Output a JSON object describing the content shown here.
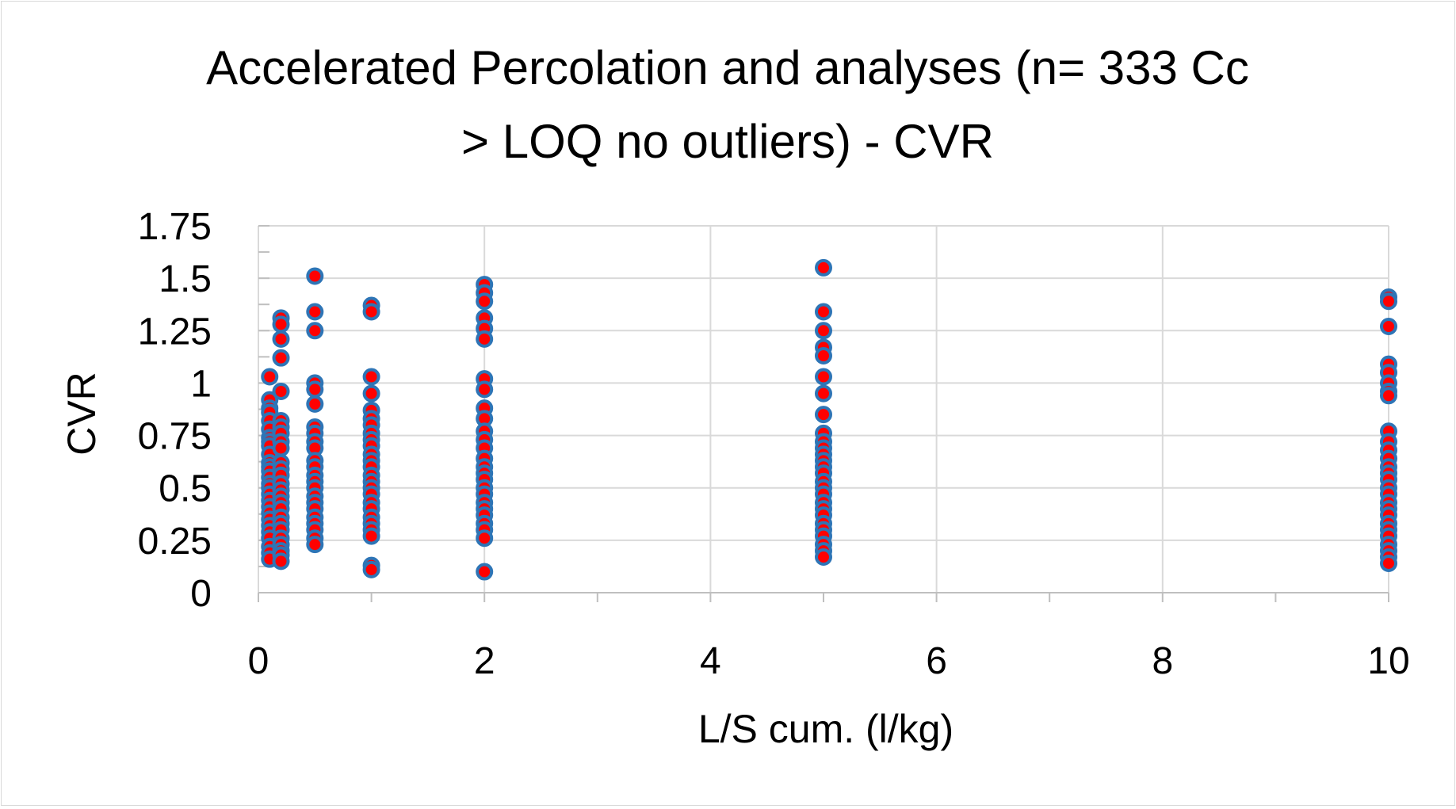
{
  "chart_data": {
    "type": "scatter",
    "title_lines": [
      "Accelerated Percolation and analyses (n= 333 Cc",
      "> LOQ no outliers) - CVR"
    ],
    "xlabel": "L/S cum. (l/kg)",
    "ylabel": "CVR",
    "xlim": [
      0,
      10
    ],
    "ylim": [
      0,
      1.75
    ],
    "x_ticks": [
      "0",
      "2",
      "4",
      "6",
      "8",
      "10"
    ],
    "y_ticks": [
      "0",
      "0.25",
      "0.5",
      "0.75",
      "1",
      "1.25",
      "1.5",
      "1.75"
    ],
    "grid": true,
    "marker": {
      "fill": "#ff0000",
      "stroke": "#2e75b6"
    },
    "series": [
      {
        "points": [
          {
            "x": 0.1,
            "y": [
              1.03,
              0.92,
              0.88,
              0.86,
              0.82,
              0.78,
              0.74,
              0.72,
              0.7,
              0.66,
              0.62,
              0.6,
              0.58,
              0.55,
              0.52,
              0.5,
              0.47,
              0.44,
              0.41,
              0.38,
              0.35,
              0.32,
              0.29,
              0.26,
              0.22,
              0.19,
              0.16
            ]
          },
          {
            "x": 0.2,
            "y": [
              1.31,
              1.28,
              1.21,
              1.12,
              0.96,
              0.82,
              0.79,
              0.76,
              0.72,
              0.69,
              0.62,
              0.59,
              0.56,
              0.52,
              0.49,
              0.46,
              0.43,
              0.4,
              0.36,
              0.33,
              0.3,
              0.26,
              0.23,
              0.2,
              0.18,
              0.15
            ]
          },
          {
            "x": 0.5,
            "y": [
              1.51,
              1.34,
              1.25,
              1.0,
              0.97,
              0.9,
              0.79,
              0.76,
              0.72,
              0.69,
              0.63,
              0.6,
              0.56,
              0.53,
              0.5,
              0.46,
              0.43,
              0.4,
              0.36,
              0.33,
              0.3,
              0.26,
              0.23
            ]
          },
          {
            "x": 1,
            "y": [
              1.37,
              1.34,
              1.03,
              0.95,
              0.87,
              0.83,
              0.8,
              0.76,
              0.73,
              0.7,
              0.66,
              0.63,
              0.6,
              0.56,
              0.53,
              0.5,
              0.47,
              0.43,
              0.4,
              0.36,
              0.33,
              0.3,
              0.27,
              0.13,
              0.11
            ]
          },
          {
            "x": 2,
            "y": [
              1.47,
              1.43,
              1.39,
              1.31,
              1.26,
              1.21,
              1.02,
              0.97,
              0.88,
              0.83,
              0.77,
              0.73,
              0.69,
              0.64,
              0.6,
              0.57,
              0.54,
              0.5,
              0.47,
              0.43,
              0.4,
              0.37,
              0.33,
              0.3,
              0.26,
              0.1
            ]
          },
          {
            "x": 5,
            "y": [
              1.55,
              1.34,
              1.25,
              1.17,
              1.13,
              1.03,
              0.95,
              0.85,
              0.76,
              0.72,
              0.69,
              0.66,
              0.63,
              0.6,
              0.57,
              0.53,
              0.5,
              0.47,
              0.43,
              0.4,
              0.37,
              0.33,
              0.3,
              0.27,
              0.23,
              0.2,
              0.17
            ]
          },
          {
            "x": 10,
            "y": [
              1.41,
              1.39,
              1.27,
              1.09,
              1.05,
              1.0,
              0.96,
              0.94,
              0.77,
              0.72,
              0.68,
              0.64,
              0.6,
              0.57,
              0.54,
              0.5,
              0.47,
              0.43,
              0.4,
              0.37,
              0.33,
              0.3,
              0.27,
              0.23,
              0.2,
              0.17,
              0.14
            ]
          }
        ]
      }
    ]
  }
}
